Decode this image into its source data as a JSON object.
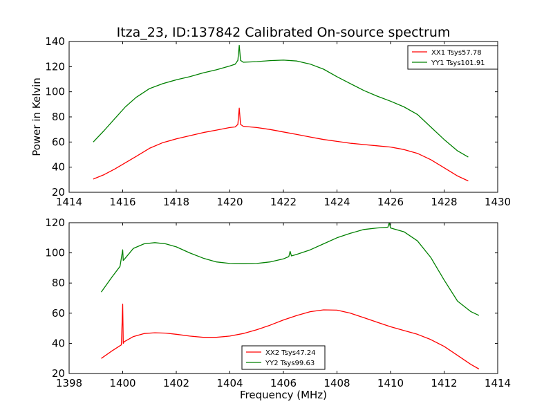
{
  "chart_data": [
    {
      "type": "line",
      "title": "Itza_23, ID:137842 Calibrated On-source spectrum",
      "xlabel": "",
      "ylabel": "Power in Kelvin",
      "xlim": [
        1414,
        1430
      ],
      "ylim": [
        20,
        140
      ],
      "xticks": [
        1414,
        1416,
        1418,
        1420,
        1422,
        1424,
        1426,
        1428,
        1430
      ],
      "yticks": [
        20,
        40,
        60,
        80,
        100,
        120,
        140
      ],
      "legend_position": "top-right",
      "series": [
        {
          "name": "XX1 Tsys57.78",
          "color": "#ff0000",
          "x": [
            1414.9,
            1415.3,
            1415.7,
            1416.1,
            1416.5,
            1417.0,
            1417.5,
            1418.0,
            1418.5,
            1419.0,
            1419.5,
            1420.0,
            1420.2,
            1420.3,
            1420.35,
            1420.4,
            1420.5,
            1421.0,
            1421.5,
            1422.0,
            1422.5,
            1423.0,
            1423.5,
            1424.0,
            1424.5,
            1425.0,
            1425.5,
            1426.0,
            1426.5,
            1427.0,
            1427.5,
            1428.0,
            1428.5,
            1428.9
          ],
          "y": [
            30.5,
            34,
            38.5,
            43.5,
            48.5,
            55,
            59.5,
            62.5,
            65,
            67.5,
            69.5,
            71.5,
            72,
            74,
            87,
            74,
            72.5,
            71.5,
            70,
            68,
            66,
            64,
            62,
            60.5,
            59,
            58,
            57,
            56,
            54,
            51,
            46,
            39.5,
            33,
            29
          ]
        },
        {
          "name": "YY1 Tsys101.91",
          "color": "#008000",
          "x": [
            1414.9,
            1415.3,
            1415.7,
            1416.1,
            1416.5,
            1417.0,
            1417.5,
            1418.0,
            1418.5,
            1419.0,
            1419.5,
            1420.0,
            1420.2,
            1420.3,
            1420.35,
            1420.4,
            1420.5,
            1421.0,
            1421.5,
            1422.0,
            1422.5,
            1423.0,
            1423.5,
            1424.0,
            1424.5,
            1425.0,
            1425.5,
            1426.0,
            1426.5,
            1427.0,
            1427.5,
            1428.0,
            1428.5,
            1428.9
          ],
          "y": [
            60,
            69,
            78.5,
            88,
            95.5,
            102.5,
            106.5,
            109.5,
            112,
            115,
            117.5,
            120.5,
            122,
            125,
            137,
            125,
            123.5,
            124,
            124.8,
            125.2,
            124.5,
            122,
            118,
            112,
            106.5,
            101,
            96.5,
            92.5,
            88,
            82,
            72,
            62,
            53,
            48
          ]
        }
      ]
    },
    {
      "type": "line",
      "title": "",
      "xlabel": "Frequency (MHz)",
      "ylabel": "",
      "xlim": [
        1398,
        1414
      ],
      "ylim": [
        20,
        120
      ],
      "xticks": [
        1398,
        1400,
        1402,
        1404,
        1406,
        1408,
        1410,
        1412,
        1414
      ],
      "yticks": [
        20,
        40,
        60,
        80,
        100,
        120
      ],
      "legend_position": "bottom-center",
      "series": [
        {
          "name": "XX2 Tsys47.24",
          "color": "#ff0000",
          "x": [
            1399.2,
            1399.6,
            1399.95,
            1400.0,
            1400.02,
            1400.05,
            1400.4,
            1400.8,
            1401.2,
            1401.6,
            1402.0,
            1402.5,
            1403.0,
            1403.5,
            1404.0,
            1404.5,
            1405.0,
            1405.5,
            1406.0,
            1406.5,
            1407.0,
            1407.5,
            1408.0,
            1408.5,
            1409.0,
            1409.5,
            1410.0,
            1410.5,
            1411.0,
            1411.5,
            1412.0,
            1412.5,
            1413.0,
            1413.3
          ],
          "y": [
            30,
            35,
            39,
            66,
            40,
            41,
            44.5,
            46.5,
            47,
            46.8,
            46,
            44.8,
            44,
            44,
            44.8,
            46.5,
            49,
            52,
            55.5,
            58.5,
            61,
            62.2,
            62,
            60,
            57,
            54,
            51,
            48.5,
            46,
            42.5,
            38,
            32,
            26,
            23
          ]
        },
        {
          "name": "YY2 Tsys99.63",
          "color": "#008000",
          "x": [
            1399.2,
            1399.6,
            1399.9,
            1400.0,
            1400.02,
            1400.05,
            1400.4,
            1400.8,
            1401.2,
            1401.6,
            1402.0,
            1402.5,
            1403.0,
            1403.5,
            1404.0,
            1404.5,
            1405.0,
            1405.5,
            1406.0,
            1406.2,
            1406.25,
            1406.3,
            1406.5,
            1407.0,
            1407.5,
            1408.0,
            1408.5,
            1409.0,
            1409.5,
            1409.9,
            1409.95,
            1410.0,
            1410.5,
            1411.0,
            1411.5,
            1412.0,
            1412.5,
            1413.0,
            1413.3
          ],
          "y": [
            74,
            84,
            91,
            102,
            95,
            95.5,
            103,
            106,
            106.8,
            106,
            104,
            100,
            96.5,
            94,
            93,
            92.8,
            93,
            94,
            96,
            97.5,
            101,
            98,
            99,
            102,
            106,
            110,
            113,
            115.5,
            116.5,
            117,
            120,
            116.5,
            114,
            108,
            97,
            82,
            68,
            61,
            58.5
          ]
        }
      ]
    }
  ]
}
